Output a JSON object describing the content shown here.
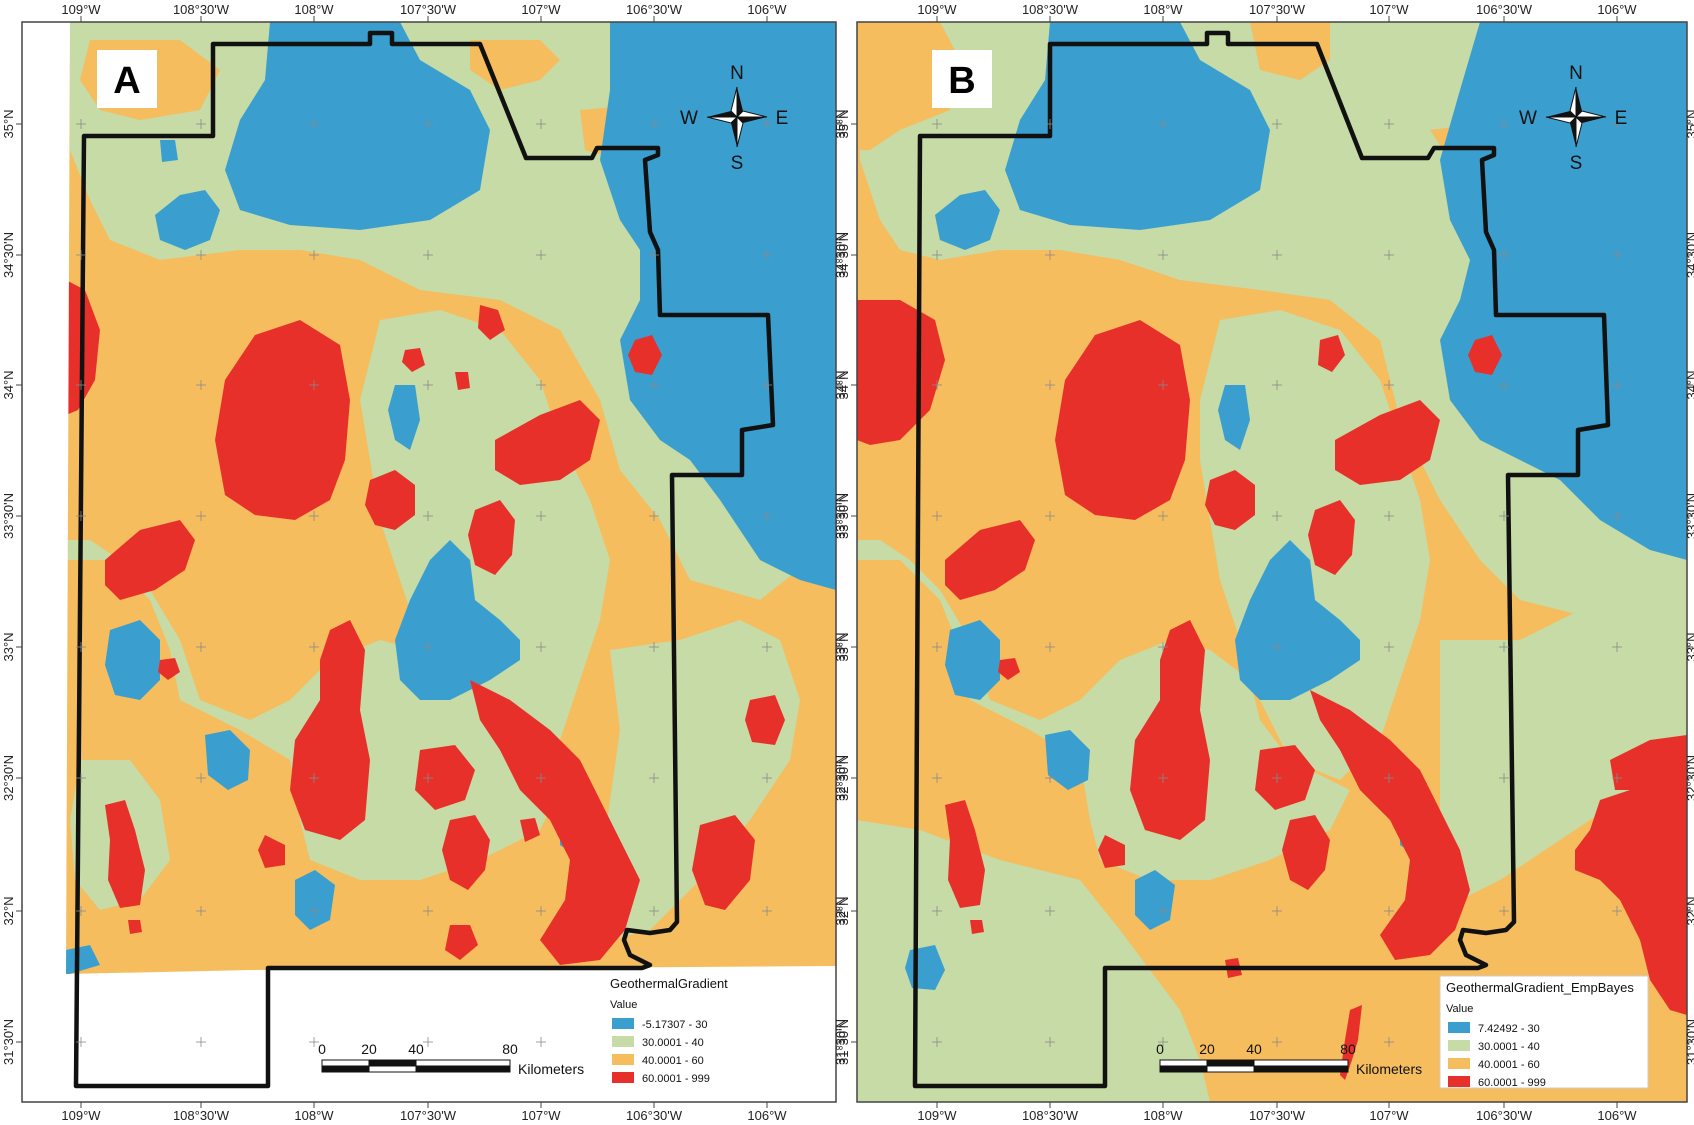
{
  "colors": {
    "class1": "#3a9fcf",
    "class2": "#c6dba5",
    "class3": "#f5bd5e",
    "class4": "#e8302a",
    "boundary": "#111111",
    "frame": "#444444"
  },
  "axes": {
    "top_ticks": [
      "109°W",
      "108°30'W",
      "108°W",
      "107°30'W",
      "107°W",
      "106°30'W",
      "106°W"
    ],
    "bottom_ticks": [
      "109°W",
      "108°30'W",
      "108°W",
      "107°30'W",
      "107°W",
      "106°30'W",
      "106°W"
    ],
    "lat_ticks": [
      "35°N",
      "34°30'N",
      "34°N",
      "33°30'N",
      "33°N",
      "32°30'N",
      "32°N",
      "31°30'N"
    ]
  },
  "panels": [
    {
      "id": "A",
      "label": "A",
      "compass": {
        "n": "N",
        "s": "S",
        "e": "E",
        "w": "W"
      },
      "scalebar": {
        "ticks": [
          "0",
          "20",
          "40",
          "80"
        ],
        "unit": "Kilometers"
      },
      "legend": {
        "title": "GeothermalGradient",
        "field": "Value",
        "classes": [
          "-5.17307 - 30",
          "30.0001 - 40",
          "40.0001 - 60",
          "60.0001 - 999"
        ]
      }
    },
    {
      "id": "B",
      "label": "B",
      "compass": {
        "n": "N",
        "s": "S",
        "e": "E",
        "w": "W"
      },
      "scalebar": {
        "ticks": [
          "0",
          "20",
          "40",
          "80"
        ],
        "unit": "Kilometers"
      },
      "legend": {
        "title": "GeothermalGradient_EmpBayes",
        "field": "Value",
        "classes": [
          "7.42492 - 30",
          "30.0001 - 40",
          "40.0001 - 60",
          "60.0001 - 999"
        ]
      }
    }
  ]
}
